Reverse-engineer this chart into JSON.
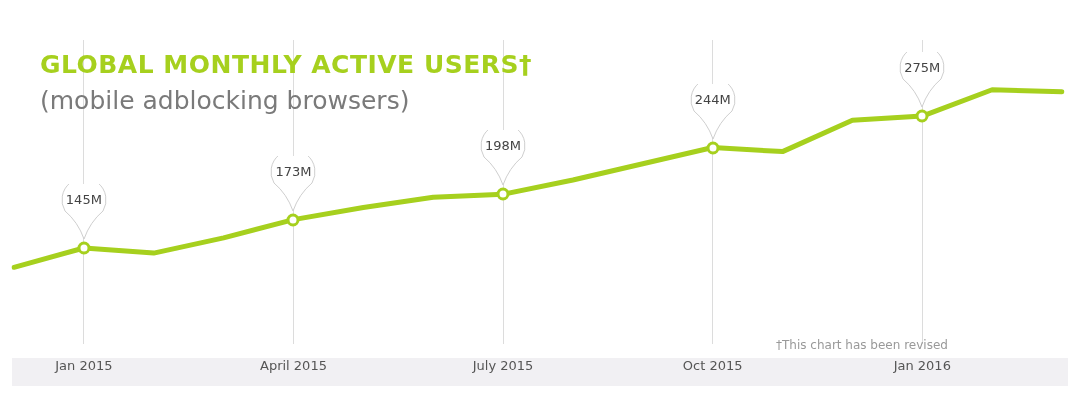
{
  "chart_data": {
    "type": "line",
    "title": "GLOBAL MONTHLY ACTIVE USERS†",
    "subtitle": "(mobile adblocking browsers)",
    "categories": [
      null,
      "Jan 2015",
      null,
      null,
      "April 2015",
      null,
      null,
      "July 2015",
      null,
      null,
      "Oct 2015",
      null,
      null,
      "Jan 2016",
      null,
      null
    ],
    "series": [
      {
        "color": "#a6d01e",
        "values": [
          126,
          145,
          140,
          155,
          173,
          185,
          195,
          198,
          212,
          228,
          244,
          240,
          271,
          275,
          301,
          299
        ],
        "value_labels": [
          null,
          "145M",
          null,
          null,
          "173M",
          null,
          null,
          "198M",
          null,
          null,
          "244M",
          null,
          null,
          "275M",
          null,
          null
        ]
      }
    ],
    "annotations": [
      "†This chart has been revised"
    ],
    "line_style": "solid",
    "grid": "x",
    "legend": false,
    "tick_labels": "x"
  }
}
